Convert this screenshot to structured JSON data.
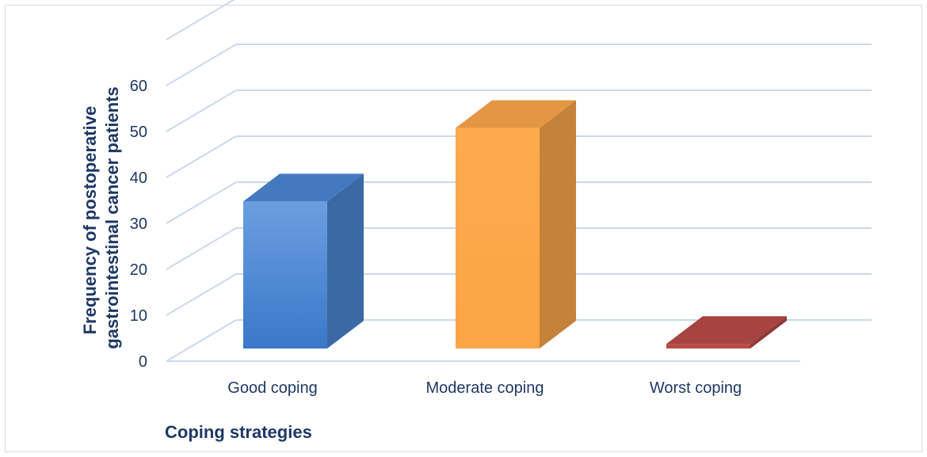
{
  "chart_data": {
    "type": "bar",
    "style": "3d-column",
    "categories": [
      "Good coping",
      "Moderate coping",
      "Worst coping"
    ],
    "values": [
      32,
      48,
      1
    ],
    "colors": [
      "#4a86d4",
      "#fca74a",
      "#b94a48"
    ],
    "ylim": [
      0,
      60
    ],
    "yticks": [
      "0",
      "10",
      "20",
      "30",
      "40",
      "50",
      "60"
    ],
    "xlabel": "Coping strategies",
    "ylabel": "Frequency of postoperative gastrointestinal cancer patients",
    "grid": true,
    "legend": "none"
  }
}
